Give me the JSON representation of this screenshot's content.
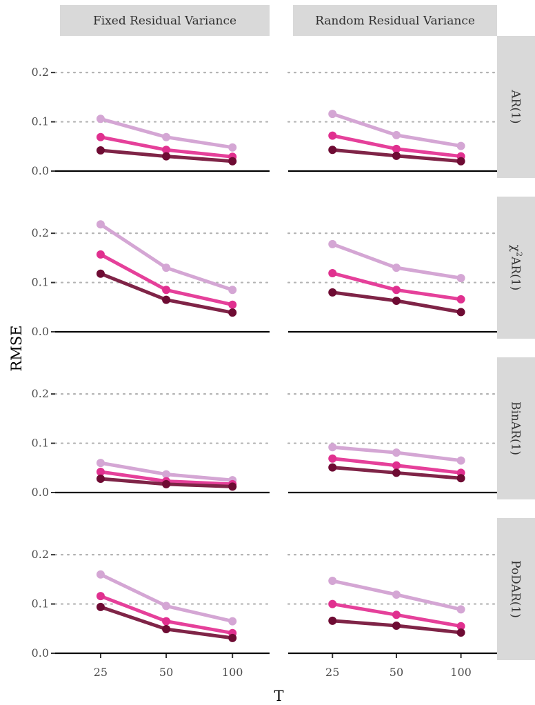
{
  "chart_data": {
    "type": "line",
    "title": "",
    "xlabel": "T",
    "ylabel": "RMSE",
    "x": [
      25,
      50,
      100
    ],
    "x_tick_labels": [
      "25",
      "50",
      "100"
    ],
    "y_ticks": [
      0.0,
      0.1,
      0.2
    ],
    "y_tick_labels": [
      "0.0",
      "0.1",
      "0.2"
    ],
    "ylim": [
      0.0,
      0.25
    ],
    "grid": "dotted horizontal major gridlines",
    "legend": "none",
    "columns": [
      "Fixed Residual Variance",
      "Random Residual Variance"
    ],
    "rows": [
      {
        "label_prefix": "",
        "label_sup": "",
        "label_main": "AR(1)"
      },
      {
        "label_prefix": "χ",
        "label_sup": "2",
        "label_main": "AR(1)"
      },
      {
        "label_prefix": "",
        "label_sup": "",
        "label_main": "BinAR(1)"
      },
      {
        "label_prefix": "",
        "label_sup": "",
        "label_main": "PoDAR(1)"
      }
    ],
    "series_colors": [
      "#d4a6d4",
      "#e5409a",
      "#7f2447"
    ],
    "point_colors": [
      "#d4a6d4",
      "#e0308f",
      "#6e0b33"
    ],
    "panels": [
      {
        "row": 0,
        "col": 0,
        "series": [
          [
            0.106,
            0.069,
            0.048
          ],
          [
            0.069,
            0.043,
            0.029
          ],
          [
            0.042,
            0.03,
            0.02
          ]
        ]
      },
      {
        "row": 0,
        "col": 1,
        "series": [
          [
            0.116,
            0.073,
            0.051
          ],
          [
            0.072,
            0.045,
            0.03
          ],
          [
            0.043,
            0.031,
            0.02
          ]
        ]
      },
      {
        "row": 1,
        "col": 0,
        "series": [
          [
            0.218,
            0.13,
            0.085
          ],
          [
            0.157,
            0.085,
            0.055
          ],
          [
            0.118,
            0.065,
            0.039
          ]
        ]
      },
      {
        "row": 1,
        "col": 1,
        "series": [
          [
            0.178,
            0.13,
            0.109
          ],
          [
            0.119,
            0.085,
            0.066
          ],
          [
            0.08,
            0.063,
            0.04
          ]
        ]
      },
      {
        "row": 2,
        "col": 0,
        "series": [
          [
            0.06,
            0.037,
            0.025
          ],
          [
            0.042,
            0.023,
            0.017
          ],
          [
            0.028,
            0.017,
            0.012
          ]
        ]
      },
      {
        "row": 2,
        "col": 1,
        "series": [
          [
            0.092,
            0.081,
            0.065
          ],
          [
            0.069,
            0.055,
            0.04
          ],
          [
            0.051,
            0.04,
            0.029
          ]
        ]
      },
      {
        "row": 3,
        "col": 0,
        "series": [
          [
            0.16,
            0.096,
            0.065
          ],
          [
            0.116,
            0.065,
            0.041
          ],
          [
            0.094,
            0.049,
            0.031
          ]
        ]
      },
      {
        "row": 3,
        "col": 1,
        "series": [
          [
            0.147,
            0.119,
            0.089
          ],
          [
            0.1,
            0.078,
            0.055
          ],
          [
            0.066,
            0.056,
            0.042
          ]
        ]
      }
    ]
  }
}
